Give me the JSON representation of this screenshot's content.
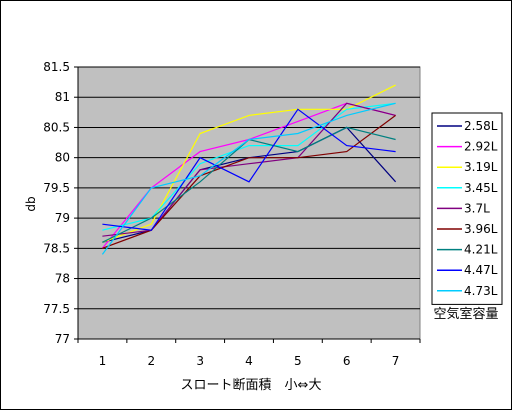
{
  "chart_data": {
    "type": "line",
    "title": "",
    "xlabel": "スロート断面積　小⇔大",
    "ylabel": "db",
    "legend_title": "空気室容量",
    "legend_position": "right",
    "grid": true,
    "plot_background": "#c0c0c0",
    "ylim": [
      77,
      81.5
    ],
    "yticks": [
      "77",
      "77.5",
      "78",
      "78.5",
      "79",
      "79.5",
      "80",
      "80.5",
      "81",
      "81.5"
    ],
    "categories": [
      "1",
      "2",
      "3",
      "4",
      "5",
      "6",
      "7"
    ],
    "series": [
      {
        "name": "2.58L",
        "color": "#000080",
        "values": [
          78.6,
          78.8,
          79.8,
          80.0,
          80.1,
          80.5,
          79.6
        ]
      },
      {
        "name": "2.92L",
        "color": "#ff00ff",
        "values": [
          78.5,
          79.5,
          80.1,
          80.3,
          80.6,
          80.9,
          80.7
        ]
      },
      {
        "name": "3.19L",
        "color": "#ffff00",
        "values": [
          78.6,
          78.9,
          80.4,
          80.7,
          80.8,
          80.8,
          81.2
        ]
      },
      {
        "name": "3.45L",
        "color": "#00ffff",
        "values": [
          78.8,
          79.0,
          79.9,
          80.2,
          80.2,
          80.8,
          80.9
        ]
      },
      {
        "name": "3.7L",
        "color": "#800080",
        "values": [
          78.7,
          78.8,
          79.8,
          79.9,
          80.0,
          80.9,
          80.7
        ]
      },
      {
        "name": "3.96L",
        "color": "#800000",
        "values": [
          78.5,
          78.8,
          79.7,
          80.0,
          80.0,
          80.1,
          80.7
        ]
      },
      {
        "name": "4.21L",
        "color": "#008080",
        "values": [
          78.6,
          79.0,
          79.6,
          80.3,
          80.1,
          80.5,
          80.3
        ]
      },
      {
        "name": "4.47L",
        "color": "#0000ff",
        "values": [
          78.9,
          78.8,
          80.0,
          79.6,
          80.8,
          80.2,
          80.1
        ]
      },
      {
        "name": "4.73L",
        "color": "#00ccff",
        "values": [
          78.4,
          79.5,
          79.7,
          80.3,
          80.4,
          80.7,
          80.9
        ]
      }
    ]
  }
}
